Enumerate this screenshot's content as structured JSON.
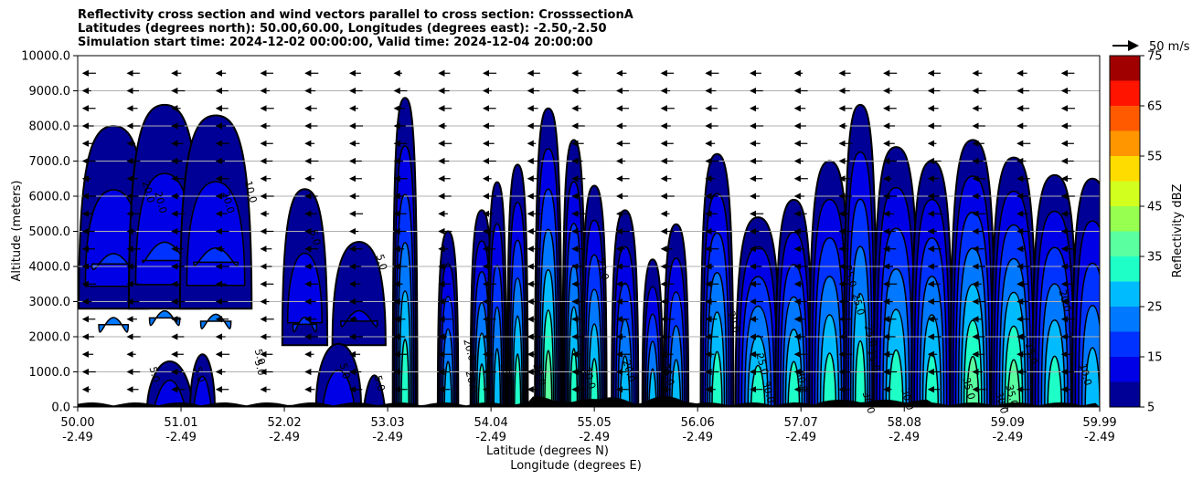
{
  "chart_data": {
    "type": "contour",
    "title_lines": [
      "Reflectivity cross section and wind vectors parallel to cross section: CrosssectionA",
      "Latitudes (degrees north): 50.00,60.00, Longitudes (degrees east): -2.50,-2.50",
      "Simulation start time: 2024-12-02 00:00:00, Valid time: 2024-12-04 20:00:00"
    ],
    "xlabel": "Latitude (degrees N)",
    "xlabel2": "Longitude (degrees E)",
    "ylabel": "Altitude (meters)",
    "xlim": [
      50.0,
      59.99
    ],
    "ylim": [
      0,
      10000
    ],
    "x_ticks": [
      {
        "lat": "50.00",
        "lon": "-2.49",
        "value": 50.0
      },
      {
        "lat": "51.01",
        "lon": "-2.49",
        "value": 51.01
      },
      {
        "lat": "52.02",
        "lon": "-2.49",
        "value": 52.02
      },
      {
        "lat": "53.03",
        "lon": "-2.49",
        "value": 53.03
      },
      {
        "lat": "54.04",
        "lon": "-2.49",
        "value": 54.04
      },
      {
        "lat": "55.05",
        "lon": "-2.49",
        "value": 55.05
      },
      {
        "lat": "56.06",
        "lon": "-2.49",
        "value": 56.06
      },
      {
        "lat": "57.07",
        "lon": "-2.49",
        "value": 57.07
      },
      {
        "lat": "58.08",
        "lon": "-2.49",
        "value": 58.08
      },
      {
        "lat": "59.09",
        "lon": "-2.49",
        "value": 59.09
      },
      {
        "lat": "59.99",
        "lon": "-2.49",
        "value": 59.99
      }
    ],
    "y_ticks": [
      {
        "label": "0.0",
        "value": 0
      },
      {
        "label": "1000.0",
        "value": 1000
      },
      {
        "label": "2000.0",
        "value": 2000
      },
      {
        "label": "3000.0",
        "value": 3000
      },
      {
        "label": "4000.0",
        "value": 4000
      },
      {
        "label": "5000.0",
        "value": 5000
      },
      {
        "label": "6000.0",
        "value": 6000
      },
      {
        "label": "7000.0",
        "value": 7000
      },
      {
        "label": "8000.0",
        "value": 8000
      },
      {
        "label": "9000.0",
        "value": 9000
      },
      {
        "label": "10000.0",
        "value": 10000
      }
    ],
    "grid": "horizontal",
    "colorbar": {
      "label": "Reflectivity dBZ",
      "levels": [
        5,
        10,
        15,
        20,
        25,
        30,
        35,
        40,
        45,
        50,
        55,
        60,
        65,
        70,
        75
      ],
      "tick_labels": [
        "5",
        "15",
        "25",
        "35",
        "45",
        "55",
        "65",
        "75"
      ],
      "colors": [
        "#000096",
        "#0000e6",
        "#0032ff",
        "#0078ff",
        "#00bcff",
        "#1effc8",
        "#5affa0",
        "#96ff50",
        "#d2ff1e",
        "#ffdc00",
        "#ff9600",
        "#ff5a00",
        "#ff1400",
        "#a00000"
      ]
    },
    "wind_reference": {
      "label": "50 m/s",
      "value": 50
    },
    "contour_labels": [
      {
        "text": "20.0",
        "x": 50.66,
        "y": 6100
      },
      {
        "text": "20.0",
        "x": 50.78,
        "y": 5800
      },
      {
        "text": "20.0",
        "x": 51.44,
        "y": 5800
      },
      {
        "text": "10.0",
        "x": 51.66,
        "y": 6100
      },
      {
        "text": "5.0",
        "x": 52.29,
        "y": 4800
      },
      {
        "text": "5.0",
        "x": 52.94,
        "y": 4100
      },
      {
        "text": "5.0",
        "x": 51.75,
        "y": 1400
      },
      {
        "text": "5.0",
        "x": 51.75,
        "y": 1100
      },
      {
        "text": "5.0",
        "x": 51.16,
        "y": 900
      },
      {
        "text": "5.0",
        "x": 50.72,
        "y": 900
      },
      {
        "text": "5.0",
        "x": 52.58,
        "y": 1000
      },
      {
        "text": "5.0",
        "x": 52.92,
        "y": 650
      },
      {
        "text": "20.0",
        "x": 53.8,
        "y": 1600
      },
      {
        "text": "20.0",
        "x": 53.82,
        "y": 700
      },
      {
        "text": "25.0",
        "x": 54.16,
        "y": 900
      },
      {
        "text": "30.0",
        "x": 54.48,
        "y": 900
      },
      {
        "text": "30.0",
        "x": 54.97,
        "y": 800
      },
      {
        "text": "25.0",
        "x": 55.1,
        "y": 3900
      },
      {
        "text": "20.0",
        "x": 55.36,
        "y": 1000
      },
      {
        "text": "25.0",
        "x": 55.74,
        "y": 900
      },
      {
        "text": "30.0",
        "x": 56.38,
        "y": 2400
      },
      {
        "text": "25.0",
        "x": 56.66,
        "y": 1200
      },
      {
        "text": "30.0",
        "x": 56.72,
        "y": 400
      },
      {
        "text": "30.0",
        "x": 57.05,
        "y": 700
      },
      {
        "text": "25.0",
        "x": 57.52,
        "y": 3700
      },
      {
        "text": "25.0",
        "x": 57.6,
        "y": 2900
      },
      {
        "text": "25.0",
        "x": 57.72,
        "y": 2000
      },
      {
        "text": "15.0",
        "x": 57.75,
        "y": 1300
      },
      {
        "text": "30.0",
        "x": 57.7,
        "y": 100
      },
      {
        "text": "30.0",
        "x": 58.08,
        "y": 200
      },
      {
        "text": "35.0",
        "x": 58.68,
        "y": 500
      },
      {
        "text": "30.0",
        "x": 59.0,
        "y": 100
      },
      {
        "text": "35.0",
        "x": 59.1,
        "y": 300
      },
      {
        "text": "15.0",
        "x": 59.29,
        "y": 1500
      },
      {
        "text": "20.0",
        "x": 59.62,
        "y": 3000
      },
      {
        "text": "10.0",
        "x": 59.82,
        "y": 900
      }
    ]
  }
}
